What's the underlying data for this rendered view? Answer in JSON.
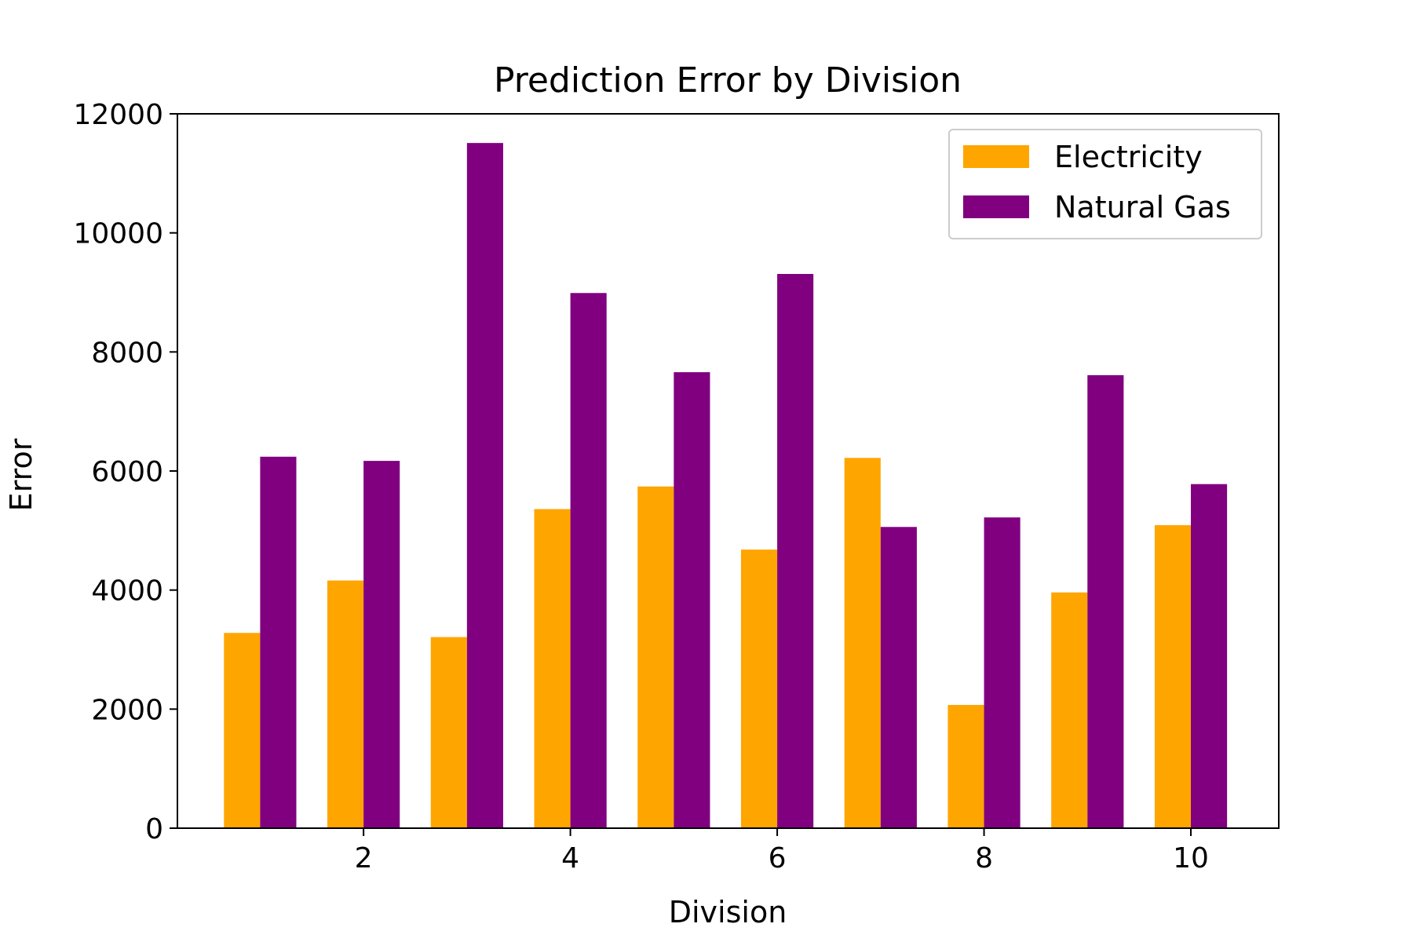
{
  "chart_data": {
    "type": "bar",
    "title": "Prediction Error by Division",
    "xlabel": "Division",
    "ylabel": "Error",
    "categories": [
      1,
      2,
      3,
      4,
      5,
      6,
      7,
      8,
      9,
      10
    ],
    "series": [
      {
        "name": "Electricity",
        "color": "#FFA500",
        "values": [
          3280,
          4160,
          3210,
          5360,
          5740,
          4680,
          6220,
          2070,
          3960,
          5090
        ]
      },
      {
        "name": "Natural Gas",
        "color": "#800080",
        "values": [
          6240,
          6170,
          11510,
          8990,
          7660,
          9310,
          5060,
          5220,
          7610,
          5780
        ]
      }
    ],
    "xlim": [
      0.2,
      10.85
    ],
    "ylim": [
      0,
      12000
    ],
    "xticks": [
      2,
      4,
      6,
      8,
      10
    ],
    "yticks": [
      0,
      2000,
      4000,
      6000,
      8000,
      10000,
      12000
    ],
    "grid": false,
    "legend_position": "top-right"
  }
}
